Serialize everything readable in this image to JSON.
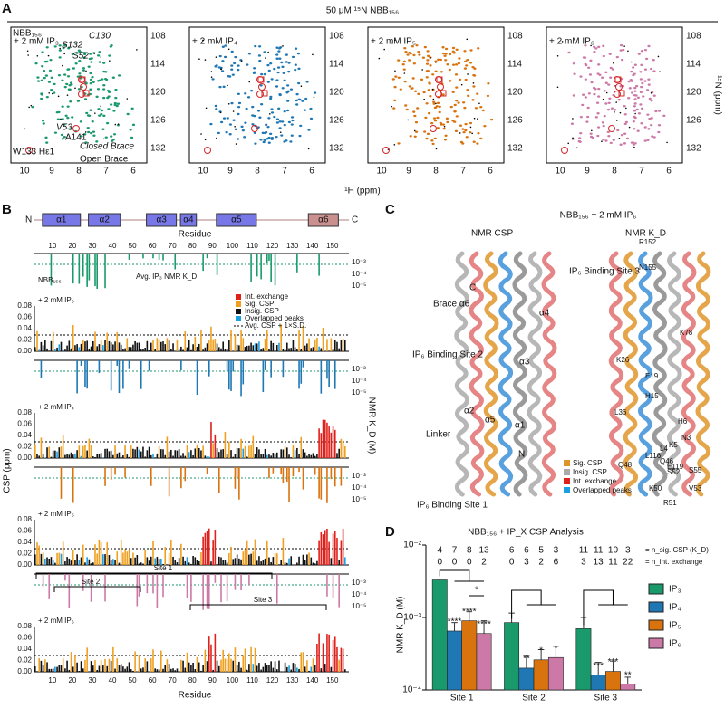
{
  "panel_a": {
    "letter": "A",
    "title": "50 μM ¹⁵N NBB₁₅₆",
    "x_label": "¹H (ppm)",
    "y_label": "¹⁵N (ppm)",
    "x_ticks": [
      "10",
      "9",
      "8",
      "7",
      "6"
    ],
    "y_ticks": [
      "108",
      "114",
      "120",
      "126",
      "132"
    ],
    "base_label": "NBB₁₅₆",
    "spectra": [
      {
        "label": "+ 2 mM IP₃",
        "color": "#1a9a6c"
      },
      {
        "label": "+ 2 mM IP₄",
        "color": "#1f77b4"
      },
      {
        "label": "+ 2 mM IP₅",
        "color": "#d9730d"
      },
      {
        "label": "+ 2 mM IP₆",
        "color": "#cc79a7"
      }
    ],
    "annotations": [
      "C130",
      "S132",
      "S52",
      "V53",
      "A141",
      "W133 Hε1",
      "Closed Brace",
      "Open Brace"
    ]
  },
  "panel_b": {
    "letter": "B",
    "n_term": "N",
    "c_term": "C",
    "domains": [
      "α1",
      "α2",
      "α3",
      "α4",
      "α5",
      "α6"
    ],
    "residue_label": "Residue",
    "residue_ticks": [
      "10",
      "20",
      "30",
      "40",
      "50",
      "60",
      "70",
      "80",
      "90",
      "100",
      "110",
      "120",
      "130",
      "140",
      "150"
    ],
    "csp_label": "CSP (ppm)",
    "kd_label": "NMR K_D (M)",
    "csp_ticks": [
      "0.00",
      "0.02",
      "0.04",
      "0.06",
      "0.08"
    ],
    "kd_ticks": [
      "10⁻³",
      "10⁻⁴",
      "10⁻⁵"
    ],
    "kd_legend": "Avg. IP₃ NMR K_D",
    "base_label": "NBB₁₅₆",
    "rows": [
      {
        "label": "+ 2 mM IP₃",
        "color": "#1a9a6c"
      },
      {
        "label": "+ 2 mM IP₄",
        "color": "#1f77b4"
      },
      {
        "label": "+ 2 mM IP₅",
        "color": "#d9730d"
      },
      {
        "label": "+ 2 mM IP₆",
        "color": "#cc79a7"
      }
    ],
    "legend": [
      "Int. exchange",
      "Sig. CSP",
      "Insig. CSP",
      "Overlapped peaks",
      "Avg. CSP + 1×S.D."
    ],
    "sites": [
      "Site 1",
      "Site 2",
      "Site 3"
    ]
  },
  "panel_c": {
    "letter": "C",
    "title": "NBB₁₅₆ + 2 mM IP₆",
    "left_title": "NMR CSP",
    "right_title": "NMR K_D",
    "labels": [
      "C",
      "Brace α6",
      "IP₆ Binding Site 2",
      "IP₆ Binding Site 3",
      "α4",
      "α3",
      "α2",
      "α5",
      "α1",
      "Linker",
      "N",
      "IP₆ Binding Site 1"
    ],
    "residues": [
      "R152",
      "N155",
      "K78",
      "K26",
      "E19",
      "H15",
      "L36",
      "H6",
      "N3",
      "K5",
      "L4",
      "L116",
      "Q46",
      "E119",
      "Q48",
      "S52",
      "S55",
      "K50",
      "V53",
      "R51"
    ],
    "legend": [
      "Sig. CSP",
      "Insig. CSP",
      "Int. exchange",
      "Overlapped peaks"
    ]
  },
  "chart_data": {
    "type": "bar",
    "letter": "D",
    "title": "NBB₁₅₆ + IP_X CSP Analysis",
    "y_label": "NMR K_D (M)",
    "log_scale": true,
    "categories": [
      "Site 1",
      "Site 2",
      "Site 3"
    ],
    "series": [
      {
        "name": "IP₃",
        "color": "#1a9a6c",
        "values": [
          0.0033,
          0.00085,
          0.0007
        ],
        "errors": [
          0.0001,
          0.0003,
          0.0003
        ]
      },
      {
        "name": "IP₄",
        "color": "#1f77b4",
        "values": [
          0.00065,
          0.0002,
          0.00016
        ],
        "errors": [
          0.0002,
          0.0001,
          8e-05
        ]
      },
      {
        "name": "IP₅",
        "color": "#d9730d",
        "values": [
          0.0009,
          0.00026,
          0.00018
        ],
        "errors": [
          0.0003,
          0.0001,
          7e-05
        ]
      },
      {
        "name": "IP₆",
        "color": "#cc79a7",
        "values": [
          0.0006,
          0.00028,
          0.00012
        ],
        "errors": [
          0.0003,
          0.00012,
          3e-05
        ]
      }
    ],
    "ylim": [
      0.0001,
      0.01
    ],
    "yticks": [
      {
        "value": 0.0001,
        "label": "10⁻⁴"
      },
      {
        "value": 0.001,
        "label": "10⁻³"
      },
      {
        "value": 0.01,
        "label": "10⁻²"
      }
    ],
    "n_sig_csp": [
      [
        4,
        7,
        8,
        13
      ],
      [
        6,
        6,
        5,
        3
      ],
      [
        11,
        11,
        10,
        3
      ]
    ],
    "n_int_exchange": [
      [
        0,
        0,
        0,
        2
      ],
      [
        0,
        3,
        2,
        6
      ],
      [
        3,
        13,
        11,
        22
      ]
    ],
    "n_sig_label": "= n_sig. CSP (K_D)",
    "n_int_label": "= n_int. exchange",
    "significance": [
      [
        "",
        "****",
        "****",
        "****"
      ],
      [
        "",
        "**",
        "*",
        "*"
      ],
      [
        "",
        "***",
        "***",
        "**"
      ]
    ],
    "bracket_label": "*"
  }
}
